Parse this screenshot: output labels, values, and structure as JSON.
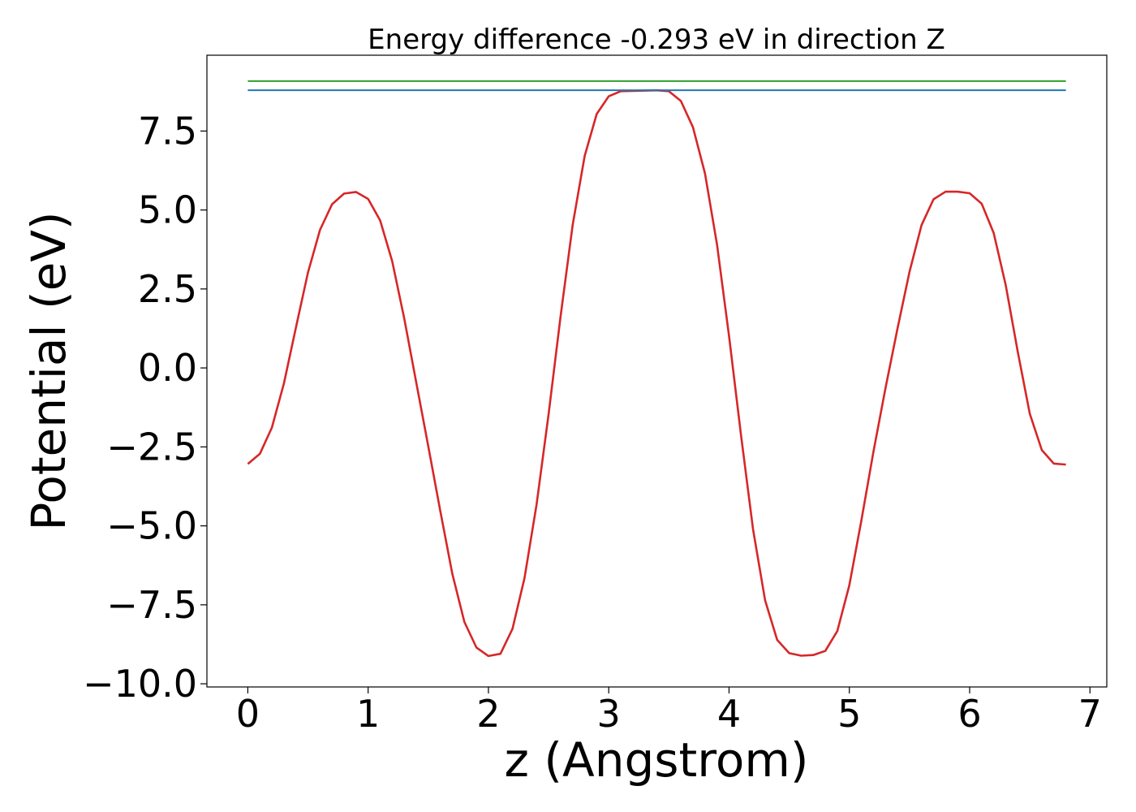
{
  "chart_data": {
    "type": "line",
    "title": "Energy difference -0.293 eV in direction Z",
    "xlabel": "z (Angstrom)",
    "ylabel": "Potential (eV)",
    "xlim": [
      -0.34,
      7.14
    ],
    "ylim": [
      -10.1,
      9.9
    ],
    "x_ticks": [
      0,
      1,
      2,
      3,
      4,
      5,
      6,
      7
    ],
    "x_tick_labels": [
      "0",
      "1",
      "2",
      "3",
      "4",
      "5",
      "6",
      "7"
    ],
    "y_ticks": [
      7.5,
      5.0,
      2.5,
      0.0,
      -2.5,
      -5.0,
      -7.5,
      -10.0
    ],
    "y_tick_labels": [
      "7.5",
      "5.0",
      "2.5",
      "0.0",
      "−2.5",
      "−5.0",
      "−7.5",
      "−10.0"
    ],
    "grid": false,
    "legend": "none",
    "series": [
      {
        "color": "#d62728",
        "x": [
          0.0,
          0.1,
          0.2,
          0.3,
          0.4,
          0.5,
          0.6,
          0.7,
          0.8,
          0.9,
          1.0,
          1.1,
          1.2,
          1.3,
          1.4,
          1.5,
          1.6,
          1.7,
          1.8,
          1.9,
          2.0,
          2.1,
          2.2,
          2.3,
          2.4,
          2.5,
          2.6,
          2.7,
          2.8,
          2.9,
          3.0,
          3.1,
          3.2,
          3.3,
          3.4,
          3.5,
          3.6,
          3.7,
          3.8,
          3.9,
          4.0,
          4.1,
          4.2,
          4.3,
          4.4,
          4.5,
          4.6,
          4.7,
          4.8,
          4.9,
          5.0,
          5.1,
          5.2,
          5.3,
          5.4,
          5.5,
          5.6,
          5.7,
          5.8,
          5.9,
          6.0,
          6.1,
          6.2,
          6.3,
          6.4,
          6.5,
          6.6,
          6.7,
          6.8
        ],
        "y": [
          -3.04,
          -2.72,
          -1.89,
          -0.49,
          1.28,
          3.02,
          4.37,
          5.18,
          5.52,
          5.57,
          5.35,
          4.67,
          3.38,
          1.57,
          -0.46,
          -2.48,
          -4.53,
          -6.52,
          -8.04,
          -8.85,
          -9.12,
          -9.05,
          -8.26,
          -6.65,
          -4.33,
          -1.47,
          1.64,
          4.52,
          6.71,
          8.04,
          8.6,
          8.76,
          8.77,
          8.78,
          8.79,
          8.76,
          8.45,
          7.62,
          6.16,
          3.91,
          1.01,
          -2.14,
          -5.12,
          -7.36,
          -8.61,
          -9.03,
          -9.11,
          -9.09,
          -8.96,
          -8.33,
          -6.88,
          -4.83,
          -2.66,
          -0.65,
          1.24,
          3.04,
          4.52,
          5.34,
          5.58,
          5.58,
          5.53,
          5.2,
          4.27,
          2.62,
          0.51,
          -1.45,
          -2.6,
          -3.03,
          -3.06
        ]
      },
      {
        "color": "#1f77b4",
        "x": [
          0.0,
          6.8
        ],
        "y": [
          8.79,
          8.79
        ]
      },
      {
        "color": "#2ca02c",
        "x": [
          0.0,
          6.8
        ],
        "y": [
          9.08,
          9.08
        ]
      }
    ]
  }
}
